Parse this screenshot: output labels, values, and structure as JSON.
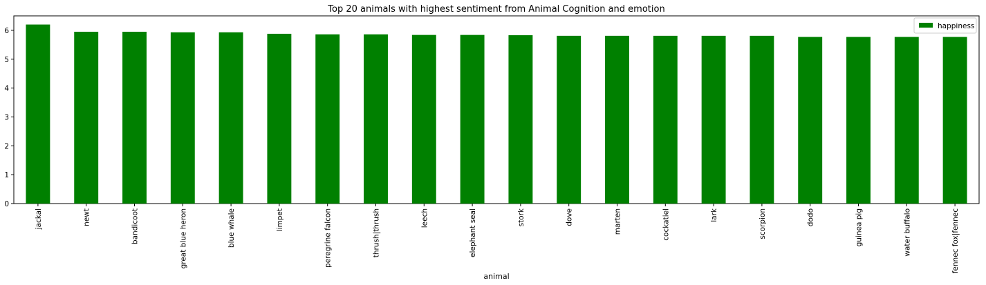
{
  "chart_data": {
    "type": "bar",
    "title": "Top 20 animals with highest sentiment from Animal Cognition and emotion",
    "xlabel": "animal",
    "ylabel": "",
    "ylim": [
      0,
      6.5
    ],
    "yticks": [
      0,
      1,
      2,
      3,
      4,
      5,
      6
    ],
    "categories": [
      "jackal",
      "newt",
      "bandicoot",
      "great blue heron",
      "blue whale",
      "limpet",
      "peregrine falcon",
      "thrush|thrush",
      "leech",
      "elephant seal",
      "stork",
      "dove",
      "marten",
      "cockatiel",
      "lark",
      "scorpion",
      "dodo",
      "guinea pig",
      "water buffalo",
      "fennec fox|fennec"
    ],
    "series": [
      {
        "name": "happiness",
        "color": "#008000",
        "values": [
          6.2,
          5.95,
          5.95,
          5.93,
          5.93,
          5.88,
          5.86,
          5.86,
          5.84,
          5.84,
          5.83,
          5.81,
          5.81,
          5.81,
          5.81,
          5.81,
          5.77,
          5.77,
          5.77,
          5.77
        ]
      }
    ],
    "legend": {
      "position": "top-right",
      "entries": [
        "happiness"
      ]
    },
    "grid": false,
    "x_tick_rotation": "vertical"
  }
}
